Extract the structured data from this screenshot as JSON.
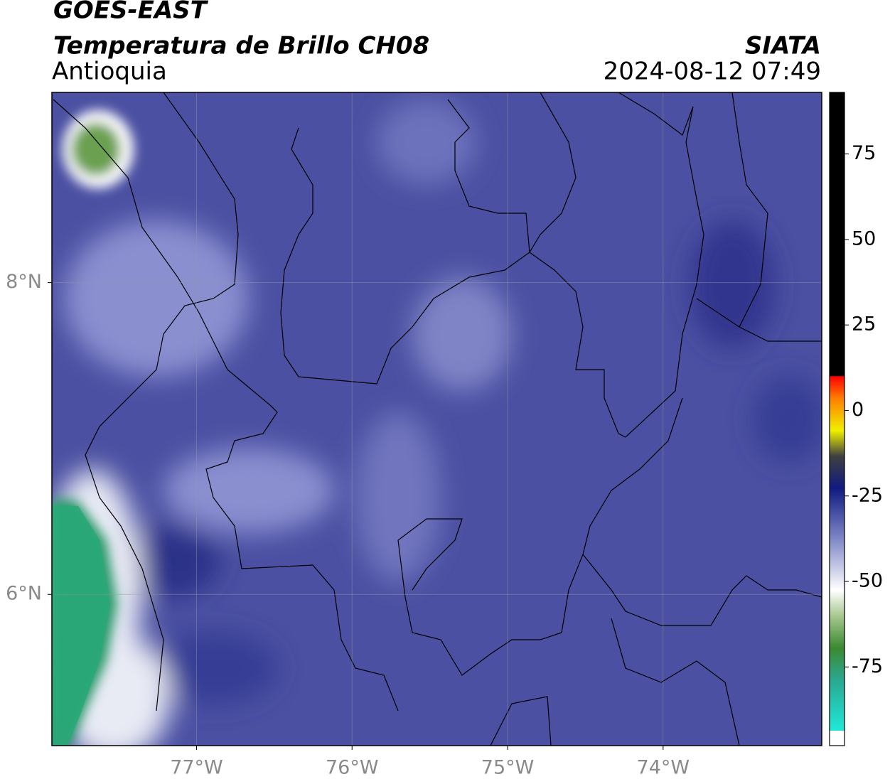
{
  "header": {
    "title": "GOES-EAST",
    "subtitle": "Temperatura de Brillo CH08",
    "region": "Antioquia",
    "source": "SIATA",
    "timestamp": "2024-08-12 07:49"
  },
  "map": {
    "lon_lim": [
      -77.93,
      -72.98
    ],
    "lat_lim": [
      5.03,
      9.22
    ],
    "lon_ticks": [
      {
        "value": -77,
        "label": "77°W"
      },
      {
        "value": -76,
        "label": "76°W"
      },
      {
        "value": -75,
        "label": "75°W"
      },
      {
        "value": -74,
        "label": "74°W"
      }
    ],
    "lat_ticks": [
      {
        "value": 8,
        "label": "8°N"
      },
      {
        "value": 6,
        "label": "6°N"
      }
    ],
    "grid": true
  },
  "colorbar": {
    "lim": [
      -98,
      93
    ],
    "ticks": [
      75,
      50,
      25,
      0,
      -25,
      -50,
      -75
    ]
  }
}
